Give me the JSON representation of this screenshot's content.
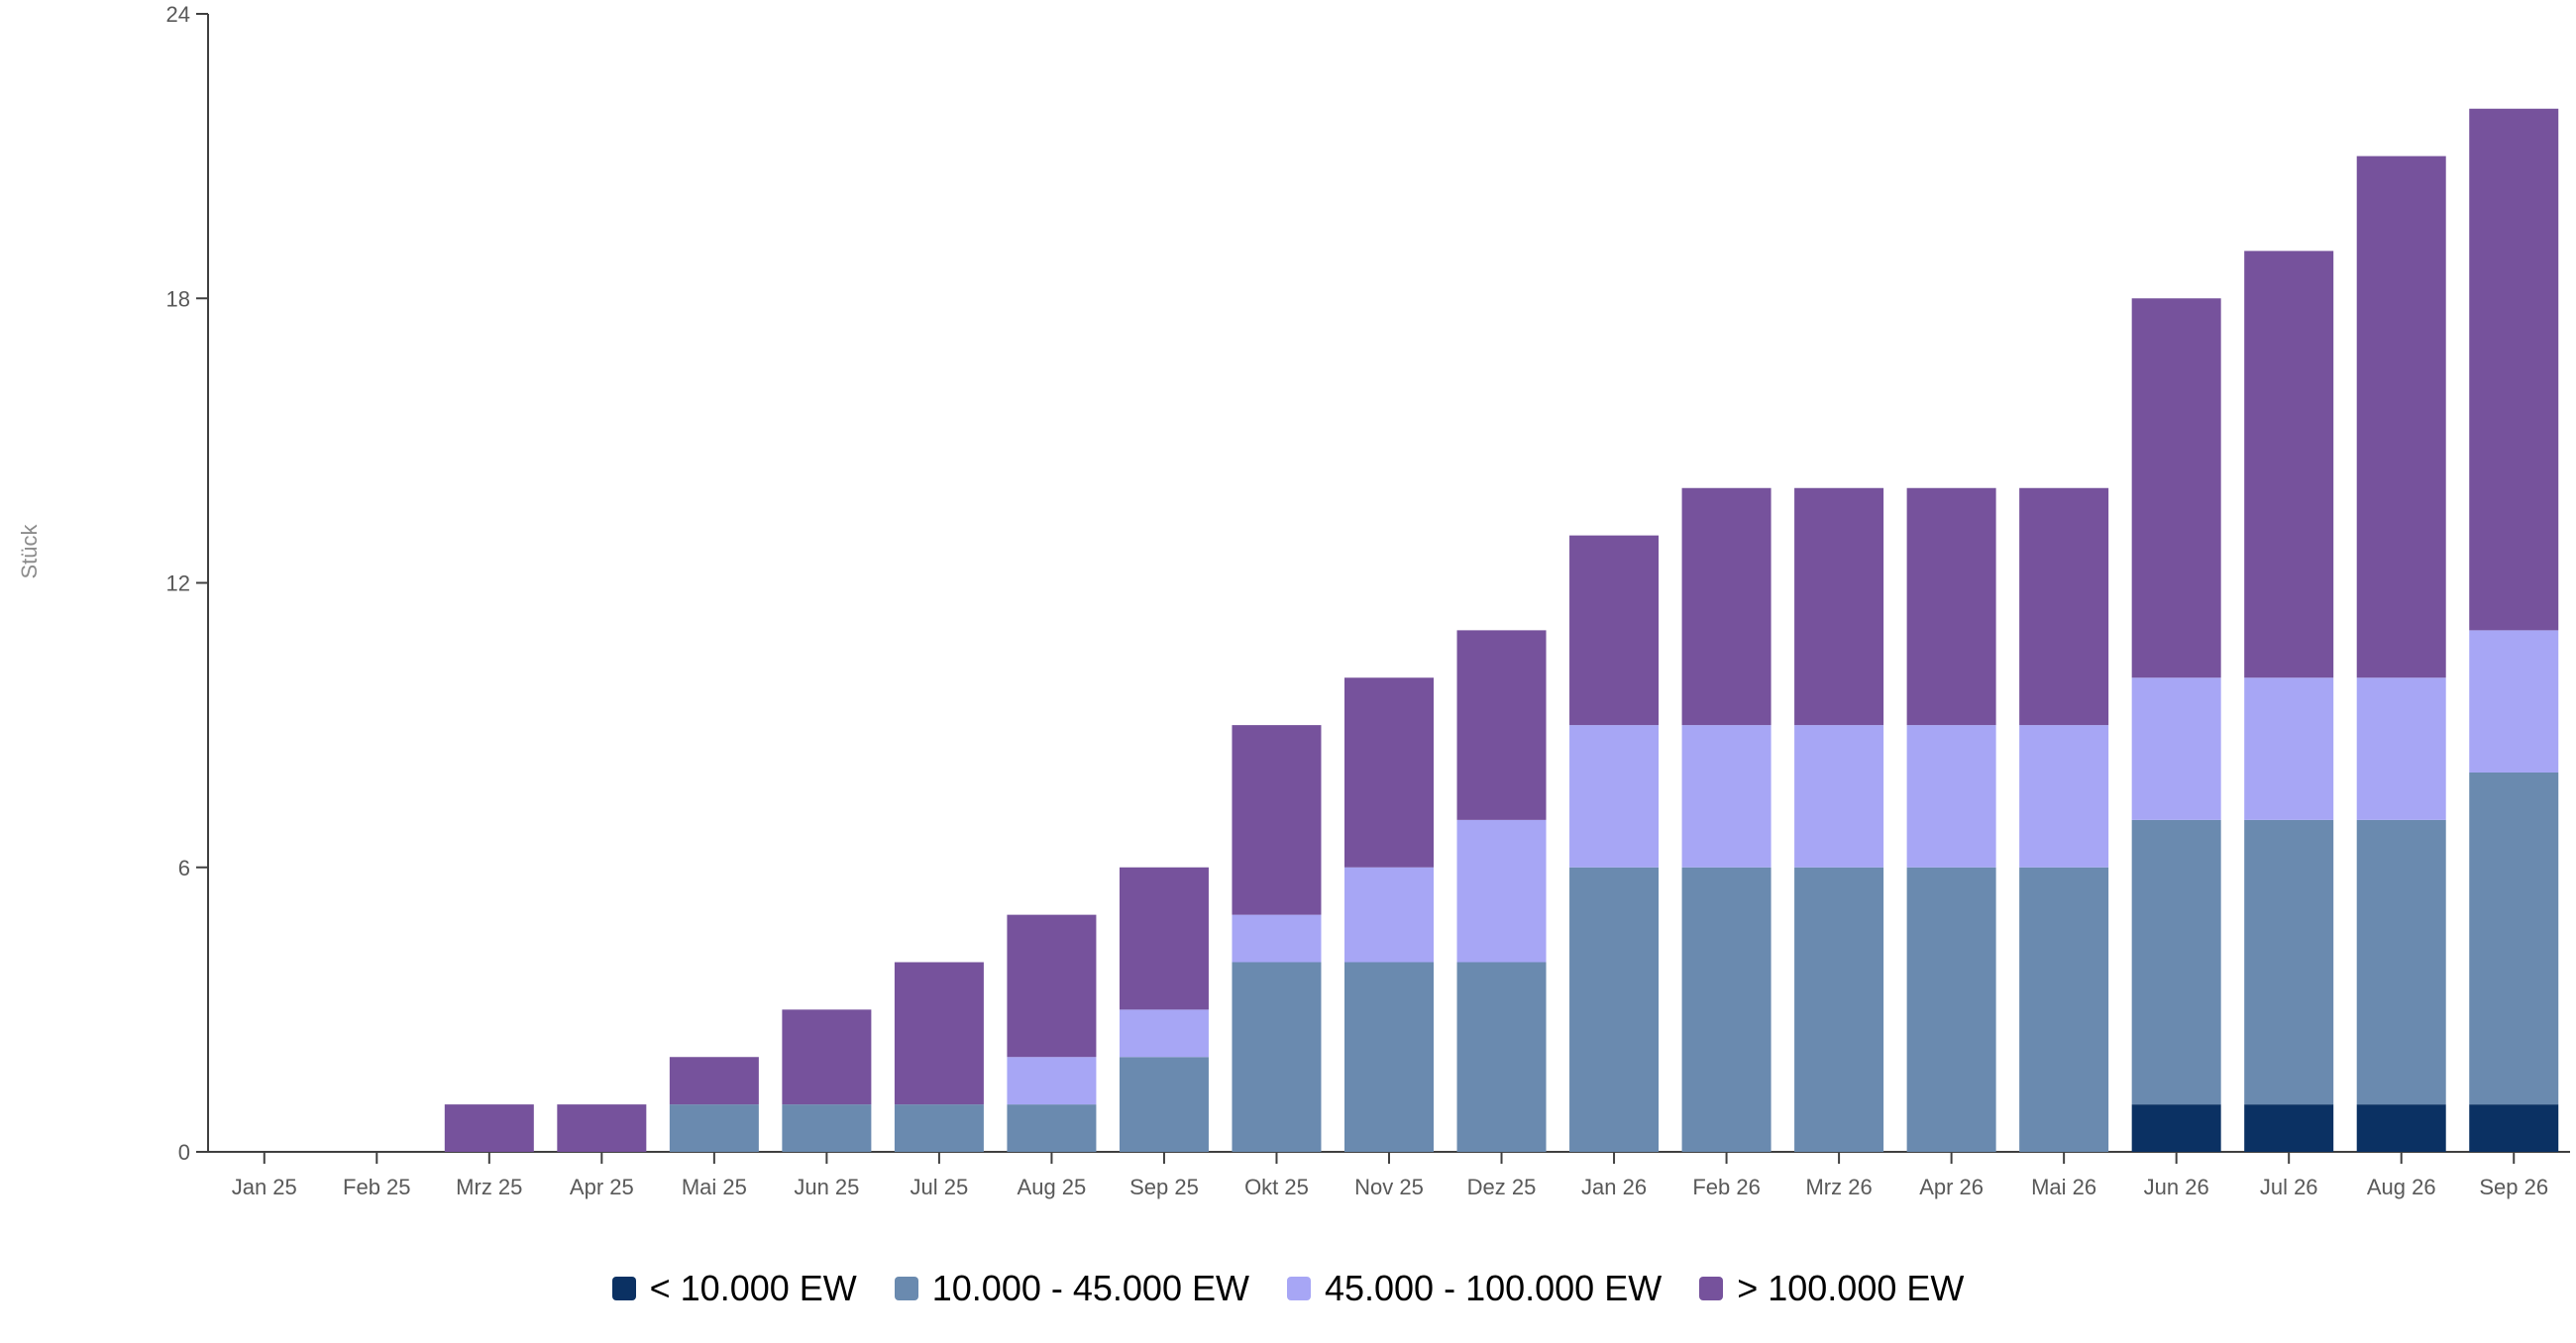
{
  "chart_data": {
    "type": "bar",
    "stacked": true,
    "ylabel": "Stück",
    "ylim": [
      0,
      24
    ],
    "yticks": [
      0,
      6,
      12,
      18,
      24
    ],
    "categories": [
      "Jan 25",
      "Feb 25",
      "Mrz 25",
      "Apr 25",
      "Mai 25",
      "Jun 25",
      "Jul 25",
      "Aug 25",
      "Sep 25",
      "Okt 25",
      "Nov 25",
      "Dez 25",
      "Jan 26",
      "Feb 26",
      "Mrz 26",
      "Apr 26",
      "Mai 26",
      "Jun 26",
      "Jul 26",
      "Aug 26",
      "Sep 26"
    ],
    "series": [
      {
        "name": "< 10.000 EW",
        "color": "#0b3163",
        "values": [
          0,
          0,
          0,
          0,
          0,
          0,
          0,
          0,
          0,
          0,
          0,
          0,
          0,
          0,
          0,
          0,
          0,
          1,
          1,
          1,
          1
        ]
      },
      {
        "name": "10.000 - 45.000 EW",
        "color": "#6a8aaf",
        "values": [
          0,
          0,
          0,
          0,
          1,
          1,
          1,
          1,
          2,
          4,
          4,
          4,
          6,
          6,
          6,
          6,
          6,
          6,
          6,
          6,
          7
        ]
      },
      {
        "name": "45.000 - 100.000 EW",
        "color": "#a7a6f5",
        "values": [
          0,
          0,
          0,
          0,
          0,
          0,
          0,
          1,
          1,
          1,
          2,
          3,
          3,
          3,
          3,
          3,
          3,
          3,
          3,
          3,
          3
        ]
      },
      {
        "name": "> 100.000 EW",
        "color": "#76529c",
        "values": [
          0,
          0,
          1,
          1,
          1,
          2,
          3,
          3,
          3,
          4,
          4,
          4,
          4,
          5,
          5,
          5,
          5,
          8,
          9,
          11,
          11
        ]
      }
    ],
    "grid": false,
    "legend_position": "bottom-center"
  }
}
